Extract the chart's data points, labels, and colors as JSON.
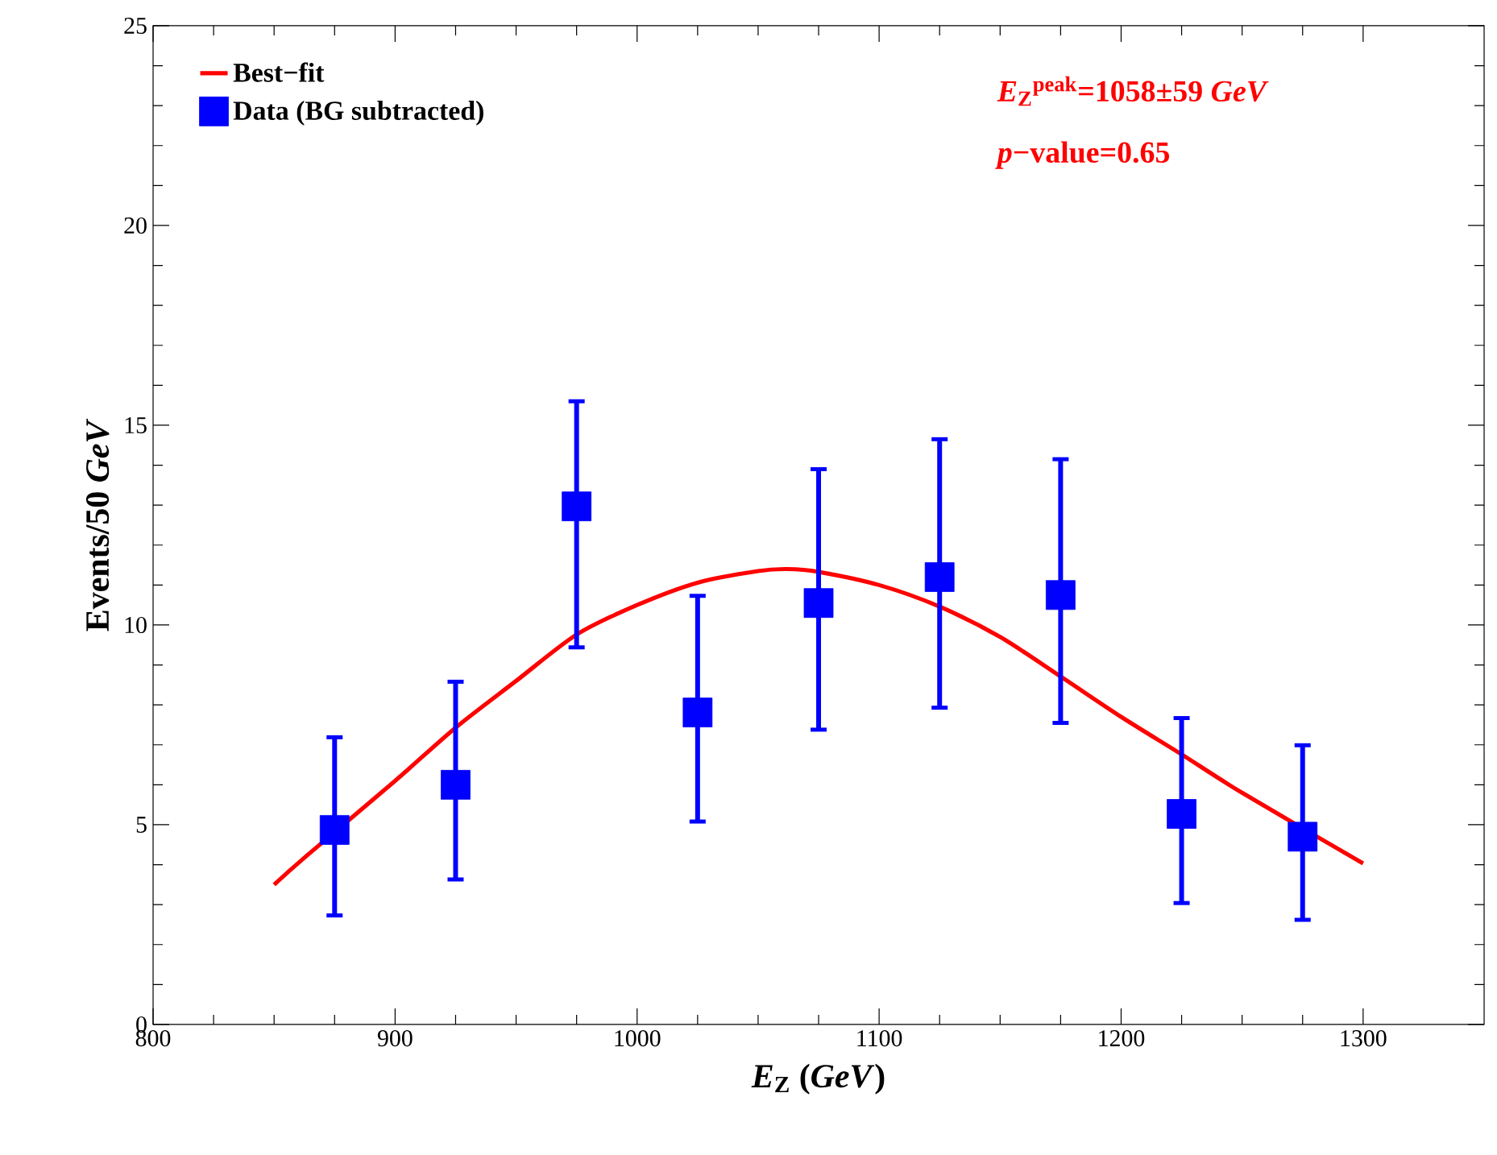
{
  "chart_data": {
    "type": "scatter",
    "xlabel": "*E*$_{Z}$ (*GeV*)",
    "ylabel": "Events/50 *GeV*",
    "xlim": [
      800,
      1350
    ],
    "ylim": [
      0,
      25
    ],
    "xticks": [
      800,
      900,
      1000,
      1100,
      1200,
      1300
    ],
    "yticks": [
      0,
      5,
      10,
      15,
      20,
      25
    ],
    "legend": "top left",
    "grid": false,
    "annotations": [
      "*E*$_{Z}$$^{peak}$=1058±59 *GeV*",
      "*p*−value=0.65"
    ],
    "series": [
      {
        "name": "Best−fit",
        "type": "line",
        "color": "#ff0000",
        "marker": "none",
        "line_style": "solid",
        "x": [
          850,
          863,
          900,
          925,
          950,
          975,
          1000,
          1025,
          1050,
          1062,
          1075,
          1100,
          1125,
          1150,
          1175,
          1200,
          1225,
          1250,
          1300
        ],
        "values": [
          3.5,
          4.2,
          6.1,
          7.43,
          8.6,
          9.76,
          10.5,
          11.06,
          11.35,
          11.4,
          11.33,
          11.0,
          10.46,
          9.7,
          8.71,
          7.7,
          6.76,
          5.8,
          4.03
        ]
      },
      {
        "name": "Data (BG subtracted)",
        "color": "#0000ff",
        "marker": "square",
        "x": [
          875,
          925,
          975,
          1025,
          1075,
          1125,
          1175,
          1225,
          1275
        ],
        "values": [
          4.87,
          6.0,
          12.97,
          7.81,
          10.55,
          11.2,
          10.75,
          5.27,
          4.7
        ],
        "errors": [
          [
            2.73,
            7.19
          ],
          [
            3.63,
            8.58
          ],
          [
            9.44,
            15.6
          ],
          [
            5.08,
            10.73
          ],
          [
            7.38,
            13.9
          ],
          [
            7.93,
            14.65
          ],
          [
            7.55,
            14.15
          ],
          [
            3.04,
            7.67
          ],
          [
            2.62,
            6.99
          ]
        ]
      }
    ]
  }
}
